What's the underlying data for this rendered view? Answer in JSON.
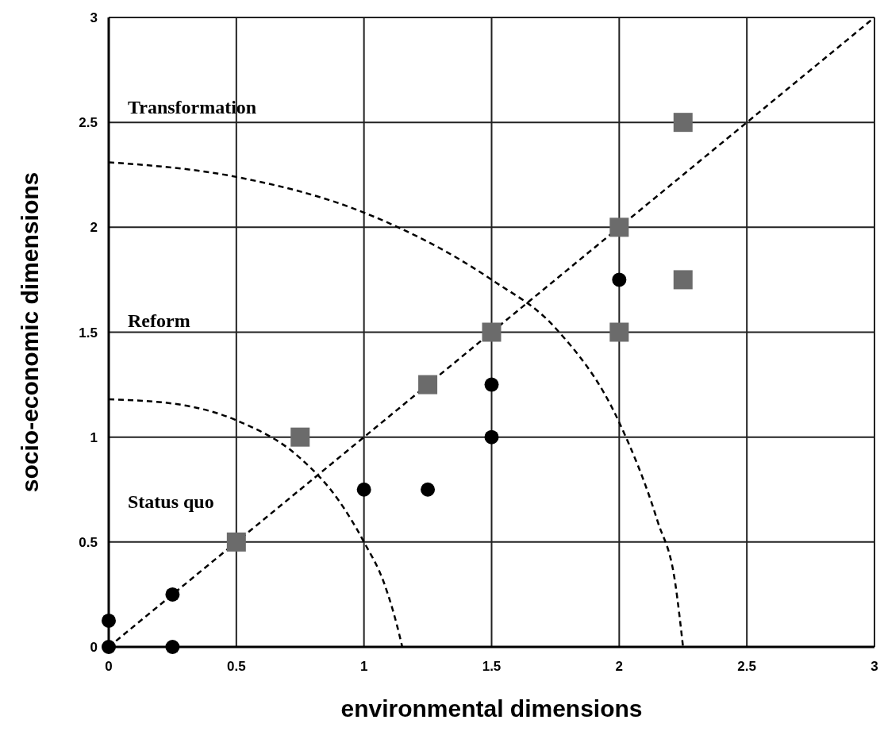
{
  "chart_data": {
    "type": "scatter",
    "xlabel": "environmental dimensions",
    "ylabel": "socio-economic dimensions",
    "xlim": [
      0,
      3
    ],
    "ylim": [
      0,
      3
    ],
    "xticks": [
      0,
      0.5,
      1,
      1.5,
      2,
      2.5,
      3
    ],
    "yticks": [
      0,
      0.5,
      1,
      1.5,
      2,
      2.5,
      3
    ],
    "grid": true,
    "annotations": [
      "Transformation",
      "Reform",
      "Status quo"
    ],
    "series": [
      {
        "type": "line",
        "color": "#000000",
        "marker": "none",
        "line_style": "dashed",
        "x": [
          0,
          3
        ],
        "values": [
          0,
          3
        ]
      },
      {
        "type": "line",
        "color": "#000000",
        "marker": "none",
        "line_style": "dashed",
        "x": [
          0,
          0.25,
          0.5,
          0.75,
          0.9,
          1,
          1.08,
          1.13,
          1.15
        ],
        "values": [
          1.18,
          1.16,
          1.08,
          0.9,
          0.7,
          0.5,
          0.3,
          0.1,
          0
        ]
      },
      {
        "type": "line",
        "color": "#000000",
        "marker": "none",
        "line_style": "dashed",
        "x": [
          0,
          0.5,
          1,
          1.5,
          1.75,
          2,
          2.15,
          2.22,
          2.25
        ],
        "values": [
          2.31,
          2.24,
          2.07,
          1.75,
          1.52,
          1.07,
          0.6,
          0.3,
          0
        ]
      },
      {
        "color": "#6b6b6b",
        "marker": "square",
        "x": [
          0.5,
          0.75,
          1.25,
          1.5,
          2,
          2,
          2.25,
          2.25
        ],
        "values": [
          0.5,
          1,
          1.25,
          1.5,
          2,
          1.5,
          1.75,
          2.5
        ]
      },
      {
        "color": "#000000",
        "marker": "circle",
        "x": [
          0,
          0,
          0.25,
          0.25,
          1,
          1.25,
          1.5,
          1.5,
          2
        ],
        "values": [
          0,
          0.125,
          0.25,
          0,
          0.75,
          0.75,
          1,
          1.25,
          1.75
        ]
      }
    ]
  }
}
